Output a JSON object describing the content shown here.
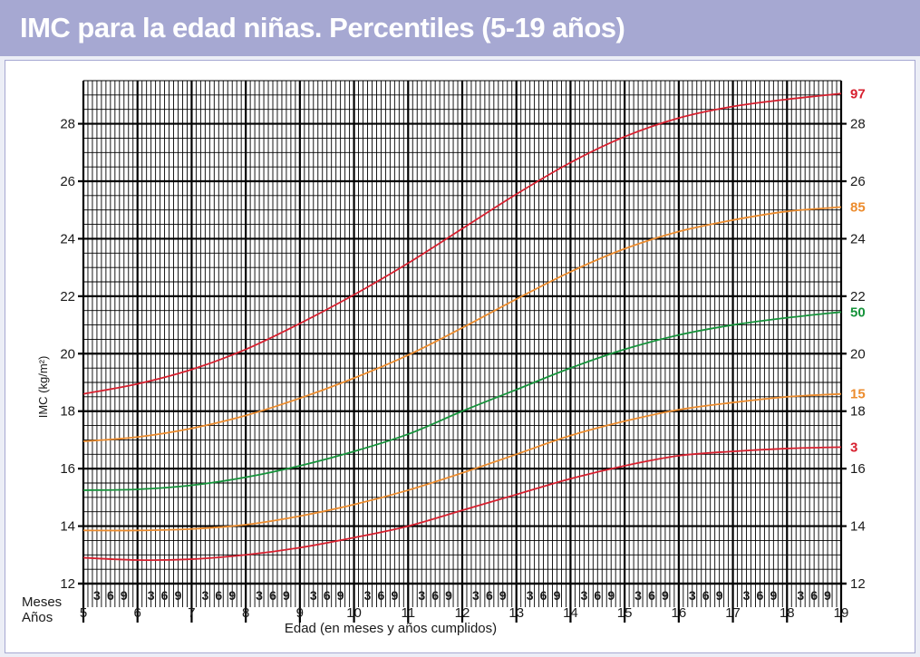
{
  "title": "IMC para la edad niñas. Percentiles (5-19 años)",
  "colors": {
    "title_bar": "#a6a8d2",
    "red": "#d7202f",
    "orange": "#ec8c2e",
    "green": "#16933b"
  },
  "chart_data": {
    "type": "line",
    "title": "IMC para la edad niñas. Percentiles (5-19 años)",
    "xlabel": "Edad (en meses y años cumplidos)",
    "ylabel": "IMC (kg/m²)",
    "row_labels": {
      "months": "Meses",
      "years": "Años"
    },
    "xlim": [
      5,
      19
    ],
    "ylim": [
      12,
      29.5
    ],
    "year_ticks": [
      "5",
      "6",
      "7",
      "8",
      "9",
      "10",
      "11",
      "12",
      "13",
      "14",
      "15",
      "16",
      "17",
      "18",
      "19"
    ],
    "month_ticks": [
      "3",
      "6",
      "9"
    ],
    "y_ticks": [
      "12",
      "14",
      "16",
      "18",
      "20",
      "22",
      "24",
      "26",
      "28"
    ],
    "y_ticks_right": [
      "12",
      "14",
      "16",
      "18",
      "20",
      "22",
      "24",
      "26",
      "28"
    ],
    "grid": true,
    "series": [
      {
        "name": "97",
        "color": "#d7202f",
        "x": [
          5,
          6,
          7,
          8,
          9,
          10,
          11,
          12,
          13,
          14,
          15,
          16,
          17,
          18,
          19
        ],
        "values": [
          18.6,
          18.95,
          19.45,
          20.15,
          21.05,
          22.05,
          23.15,
          24.35,
          25.55,
          26.65,
          27.55,
          28.2,
          28.6,
          28.85,
          29.05
        ]
      },
      {
        "name": "85",
        "color": "#ec8c2e",
        "x": [
          5,
          6,
          7,
          8,
          9,
          10,
          11,
          12,
          13,
          14,
          15,
          16,
          17,
          18,
          19
        ],
        "values": [
          16.95,
          17.1,
          17.4,
          17.85,
          18.45,
          19.15,
          19.95,
          20.9,
          21.9,
          22.85,
          23.65,
          24.25,
          24.65,
          24.95,
          25.1
        ]
      },
      {
        "name": "50",
        "color": "#16933b",
        "x": [
          5,
          6,
          7,
          8,
          9,
          10,
          11,
          12,
          13,
          14,
          15,
          16,
          17,
          18,
          19
        ],
        "values": [
          15.25,
          15.28,
          15.42,
          15.7,
          16.1,
          16.6,
          17.2,
          18.0,
          18.75,
          19.5,
          20.15,
          20.65,
          21.0,
          21.25,
          21.45
        ]
      },
      {
        "name": "15",
        "color": "#ec8c2e",
        "x": [
          5,
          6,
          7,
          8,
          9,
          10,
          11,
          12,
          13,
          14,
          15,
          16,
          17,
          18,
          19
        ],
        "values": [
          13.85,
          13.85,
          13.9,
          14.05,
          14.35,
          14.75,
          15.25,
          15.85,
          16.5,
          17.15,
          17.65,
          18.05,
          18.3,
          18.5,
          18.6
        ]
      },
      {
        "name": "3",
        "color": "#d7202f",
        "x": [
          5,
          6,
          7,
          8,
          9,
          10,
          11,
          12,
          13,
          14,
          15,
          16,
          17,
          18,
          19
        ],
        "values": [
          12.9,
          12.82,
          12.85,
          13.0,
          13.25,
          13.6,
          14.0,
          14.55,
          15.1,
          15.65,
          16.1,
          16.45,
          16.6,
          16.7,
          16.75
        ]
      }
    ]
  }
}
